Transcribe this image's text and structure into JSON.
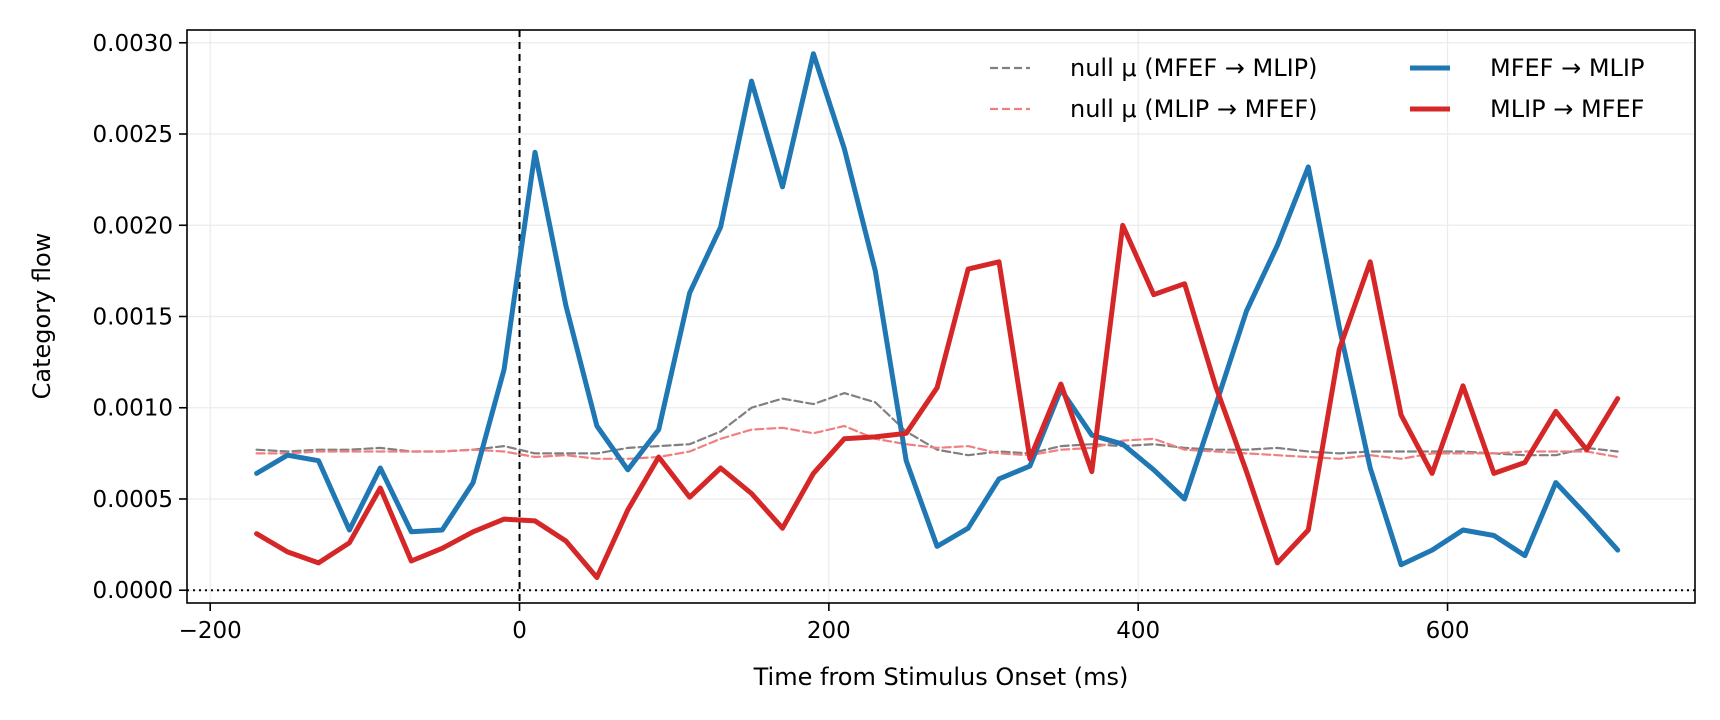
{
  "chart_data": {
    "type": "line",
    "title": "",
    "xlabel": "Time from Stimulus Onset (ms)",
    "ylabel": "Category flow",
    "xlim": [
      -215,
      760
    ],
    "ylim": [
      -7e-05,
      0.00307
    ],
    "xticks": [
      -200,
      0,
      200,
      400,
      600
    ],
    "xtick_labels": [
      "−200",
      "0",
      "200",
      "400",
      "600"
    ],
    "yticks": [
      0,
      0.0005,
      0.001,
      0.0015,
      0.002,
      0.0025,
      0.003
    ],
    "ytick_labels": [
      "0.0000",
      "0.0005",
      "0.0010",
      "0.0015",
      "0.0020",
      "0.0025",
      "0.0030"
    ],
    "grid": true,
    "legend_position": "top-right",
    "reference_lines": [
      {
        "orientation": "vertical",
        "value": 0,
        "style": "dashed",
        "color": "#000000"
      },
      {
        "orientation": "horizontal",
        "value": 0,
        "style": "dotted",
        "color": "#000000"
      }
    ],
    "x": [
      -170,
      -150,
      -130,
      -110,
      -90,
      -70,
      -50,
      -30,
      -10,
      10,
      30,
      50,
      70,
      90,
      110,
      130,
      150,
      170,
      190,
      210,
      230,
      250,
      270,
      290,
      310,
      330,
      350,
      370,
      390,
      410,
      430,
      450,
      470,
      490,
      510,
      530,
      550,
      570,
      590,
      610,
      630,
      650,
      670,
      690,
      710
    ],
    "series": [
      {
        "name": "null μ (MFEF → MLIP)",
        "color": "#808080",
        "style": "dashed",
        "width": 2.2,
        "values": [
          0.00077,
          0.00076,
          0.00077,
          0.00077,
          0.00078,
          0.00076,
          0.00076,
          0.00077,
          0.00079,
          0.00075,
          0.00075,
          0.00075,
          0.00078,
          0.00079,
          0.0008,
          0.00087,
          0.001,
          0.00105,
          0.00102,
          0.00108,
          0.00103,
          0.00087,
          0.00077,
          0.00074,
          0.00076,
          0.00075,
          0.00079,
          0.0008,
          0.00079,
          0.0008,
          0.00078,
          0.00077,
          0.00077,
          0.00078,
          0.00076,
          0.00075,
          0.00076,
          0.00076,
          0.00076,
          0.00076,
          0.00075,
          0.00074,
          0.00074,
          0.00078,
          0.00076
        ]
      },
      {
        "name": "null μ (MLIP → MFEF)",
        "color": "#f08080",
        "style": "dashed",
        "width": 2.2,
        "values": [
          0.00075,
          0.00075,
          0.00076,
          0.00076,
          0.00076,
          0.00076,
          0.00076,
          0.00077,
          0.00076,
          0.00073,
          0.00074,
          0.00072,
          0.00072,
          0.00073,
          0.00076,
          0.00083,
          0.00088,
          0.00089,
          0.00086,
          0.0009,
          0.00083,
          0.0008,
          0.00078,
          0.00079,
          0.00075,
          0.00074,
          0.00077,
          0.00078,
          0.00082,
          0.00083,
          0.00077,
          0.00076,
          0.00075,
          0.00074,
          0.00073,
          0.00072,
          0.00074,
          0.00072,
          0.00075,
          0.00075,
          0.00075,
          0.00076,
          0.00076,
          0.00076,
          0.00073
        ]
      },
      {
        "name": "MFEF → MLIP",
        "color": "#1f77b4",
        "style": "solid",
        "width": 5,
        "values": [
          0.00064,
          0.00074,
          0.00071,
          0.00033,
          0.00067,
          0.00032,
          0.00033,
          0.00059,
          0.00121,
          0.0024,
          0.00156,
          0.0009,
          0.00066,
          0.00088,
          0.00163,
          0.00199,
          0.00279,
          0.00221,
          0.00294,
          0.00242,
          0.00175,
          0.00071,
          0.00024,
          0.00034,
          0.00061,
          0.00068,
          0.0011,
          0.00085,
          0.0008,
          0.00066,
          0.0005,
          0.00101,
          0.00153,
          0.00189,
          0.00232,
          0.00144,
          0.00067,
          0.00014,
          0.00022,
          0.00033,
          0.0003,
          0.00019,
          0.00059,
          0.00041,
          0.00022
        ]
      },
      {
        "name": "MLIP → MFEF",
        "color": "#d62728",
        "style": "solid",
        "width": 5,
        "values": [
          0.00031,
          0.00021,
          0.00015,
          0.00026,
          0.00056,
          0.00016,
          0.00023,
          0.00032,
          0.00039,
          0.00038,
          0.00027,
          7e-05,
          0.00044,
          0.00073,
          0.00051,
          0.00067,
          0.00053,
          0.00034,
          0.00064,
          0.00083,
          0.00084,
          0.00086,
          0.00111,
          0.00176,
          0.0018,
          0.00072,
          0.00113,
          0.00065,
          0.002,
          0.00162,
          0.00168,
          0.00112,
          0.00065,
          0.00015,
          0.00033,
          0.00132,
          0.0018,
          0.00096,
          0.00064,
          0.00112,
          0.00064,
          0.0007,
          0.00098,
          0.00077,
          0.00105
        ]
      }
    ]
  }
}
